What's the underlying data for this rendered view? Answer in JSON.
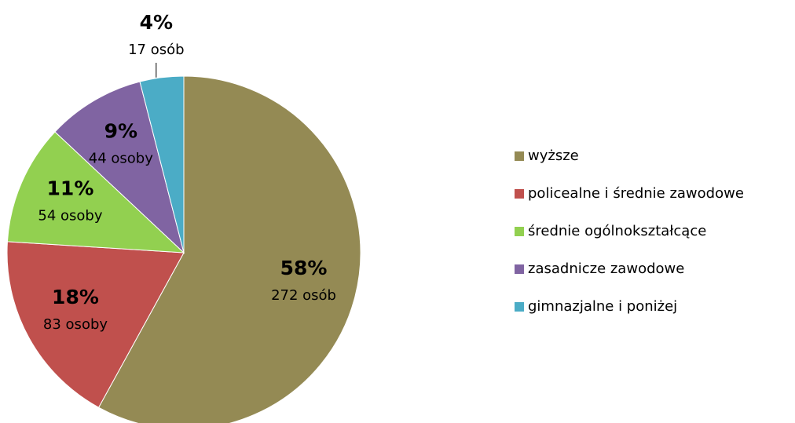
{
  "chart_data": {
    "type": "pie",
    "categories": [
      "wyższe",
      "policealne i średnie zawodowe",
      "średnie ogólnokształcące",
      "zasadnicze zawodowe",
      "gimnazjalne i poniżej"
    ],
    "values": [
      58,
      18,
      11,
      9,
      4
    ],
    "value_labels": [
      "58%",
      "18%",
      "11%",
      "9%",
      "4%"
    ],
    "count_labels": [
      "272 osób",
      "83 osoby",
      "54 osoby",
      "44 osoby",
      "17 osób"
    ],
    "colors": [
      "#948a54",
      "#c0504d",
      "#92d050",
      "#8064a2",
      "#4bacc6"
    ],
    "legend": "right"
  }
}
